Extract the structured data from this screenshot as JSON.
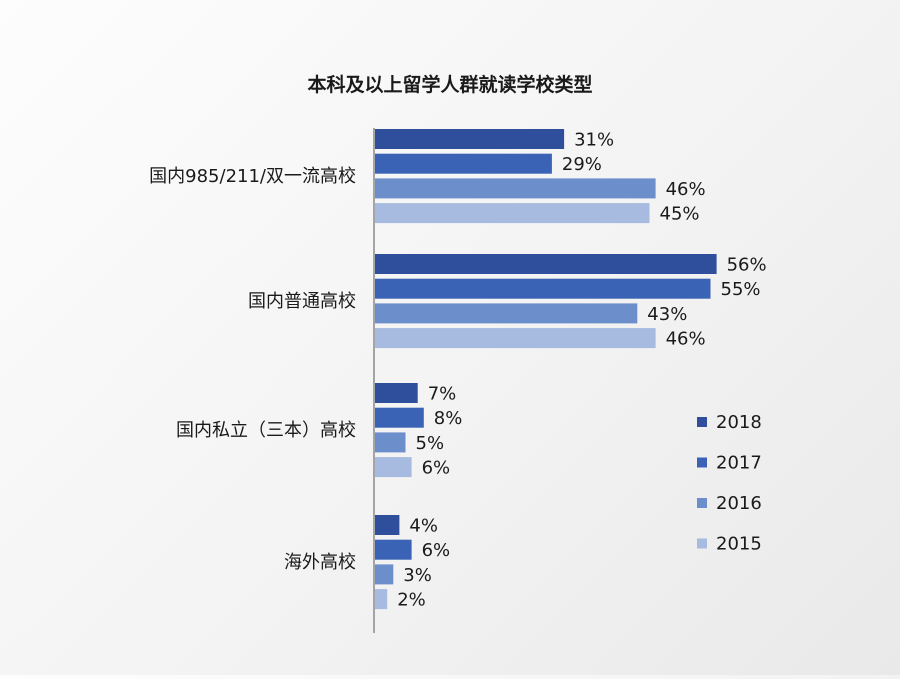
{
  "chart_data": {
    "type": "bar",
    "orientation": "horizontal",
    "title": "本科及以上留学人群就读学校类型",
    "categories": [
      "国内985/211/双一流高校",
      "国内普通高校",
      "国内私立（三本）高校",
      "海外高校"
    ],
    "series": [
      {
        "name": "2018",
        "color": "#2f4f9c",
        "values": [
          31,
          56,
          7,
          4
        ],
        "labels": [
          "31%",
          "56%",
          "7%",
          "4%"
        ]
      },
      {
        "name": "2017",
        "color": "#3a63b5",
        "values": [
          29,
          55,
          8,
          6
        ],
        "labels": [
          "29%",
          "55%",
          "8%",
          "6%"
        ]
      },
      {
        "name": "2016",
        "color": "#6c8fcb",
        "values": [
          46,
          43,
          5,
          3
        ],
        "labels": [
          "46%",
          "43%",
          "5%",
          "3%"
        ]
      },
      {
        "name": "2015",
        "color": "#a7bbe0",
        "values": [
          45,
          46,
          6,
          2
        ],
        "labels": [
          "45%",
          "46%",
          "6%",
          "2%"
        ]
      }
    ],
    "value_unit": "%",
    "xlim": [
      0,
      56
    ],
    "grid": false,
    "legend_position": "right"
  }
}
